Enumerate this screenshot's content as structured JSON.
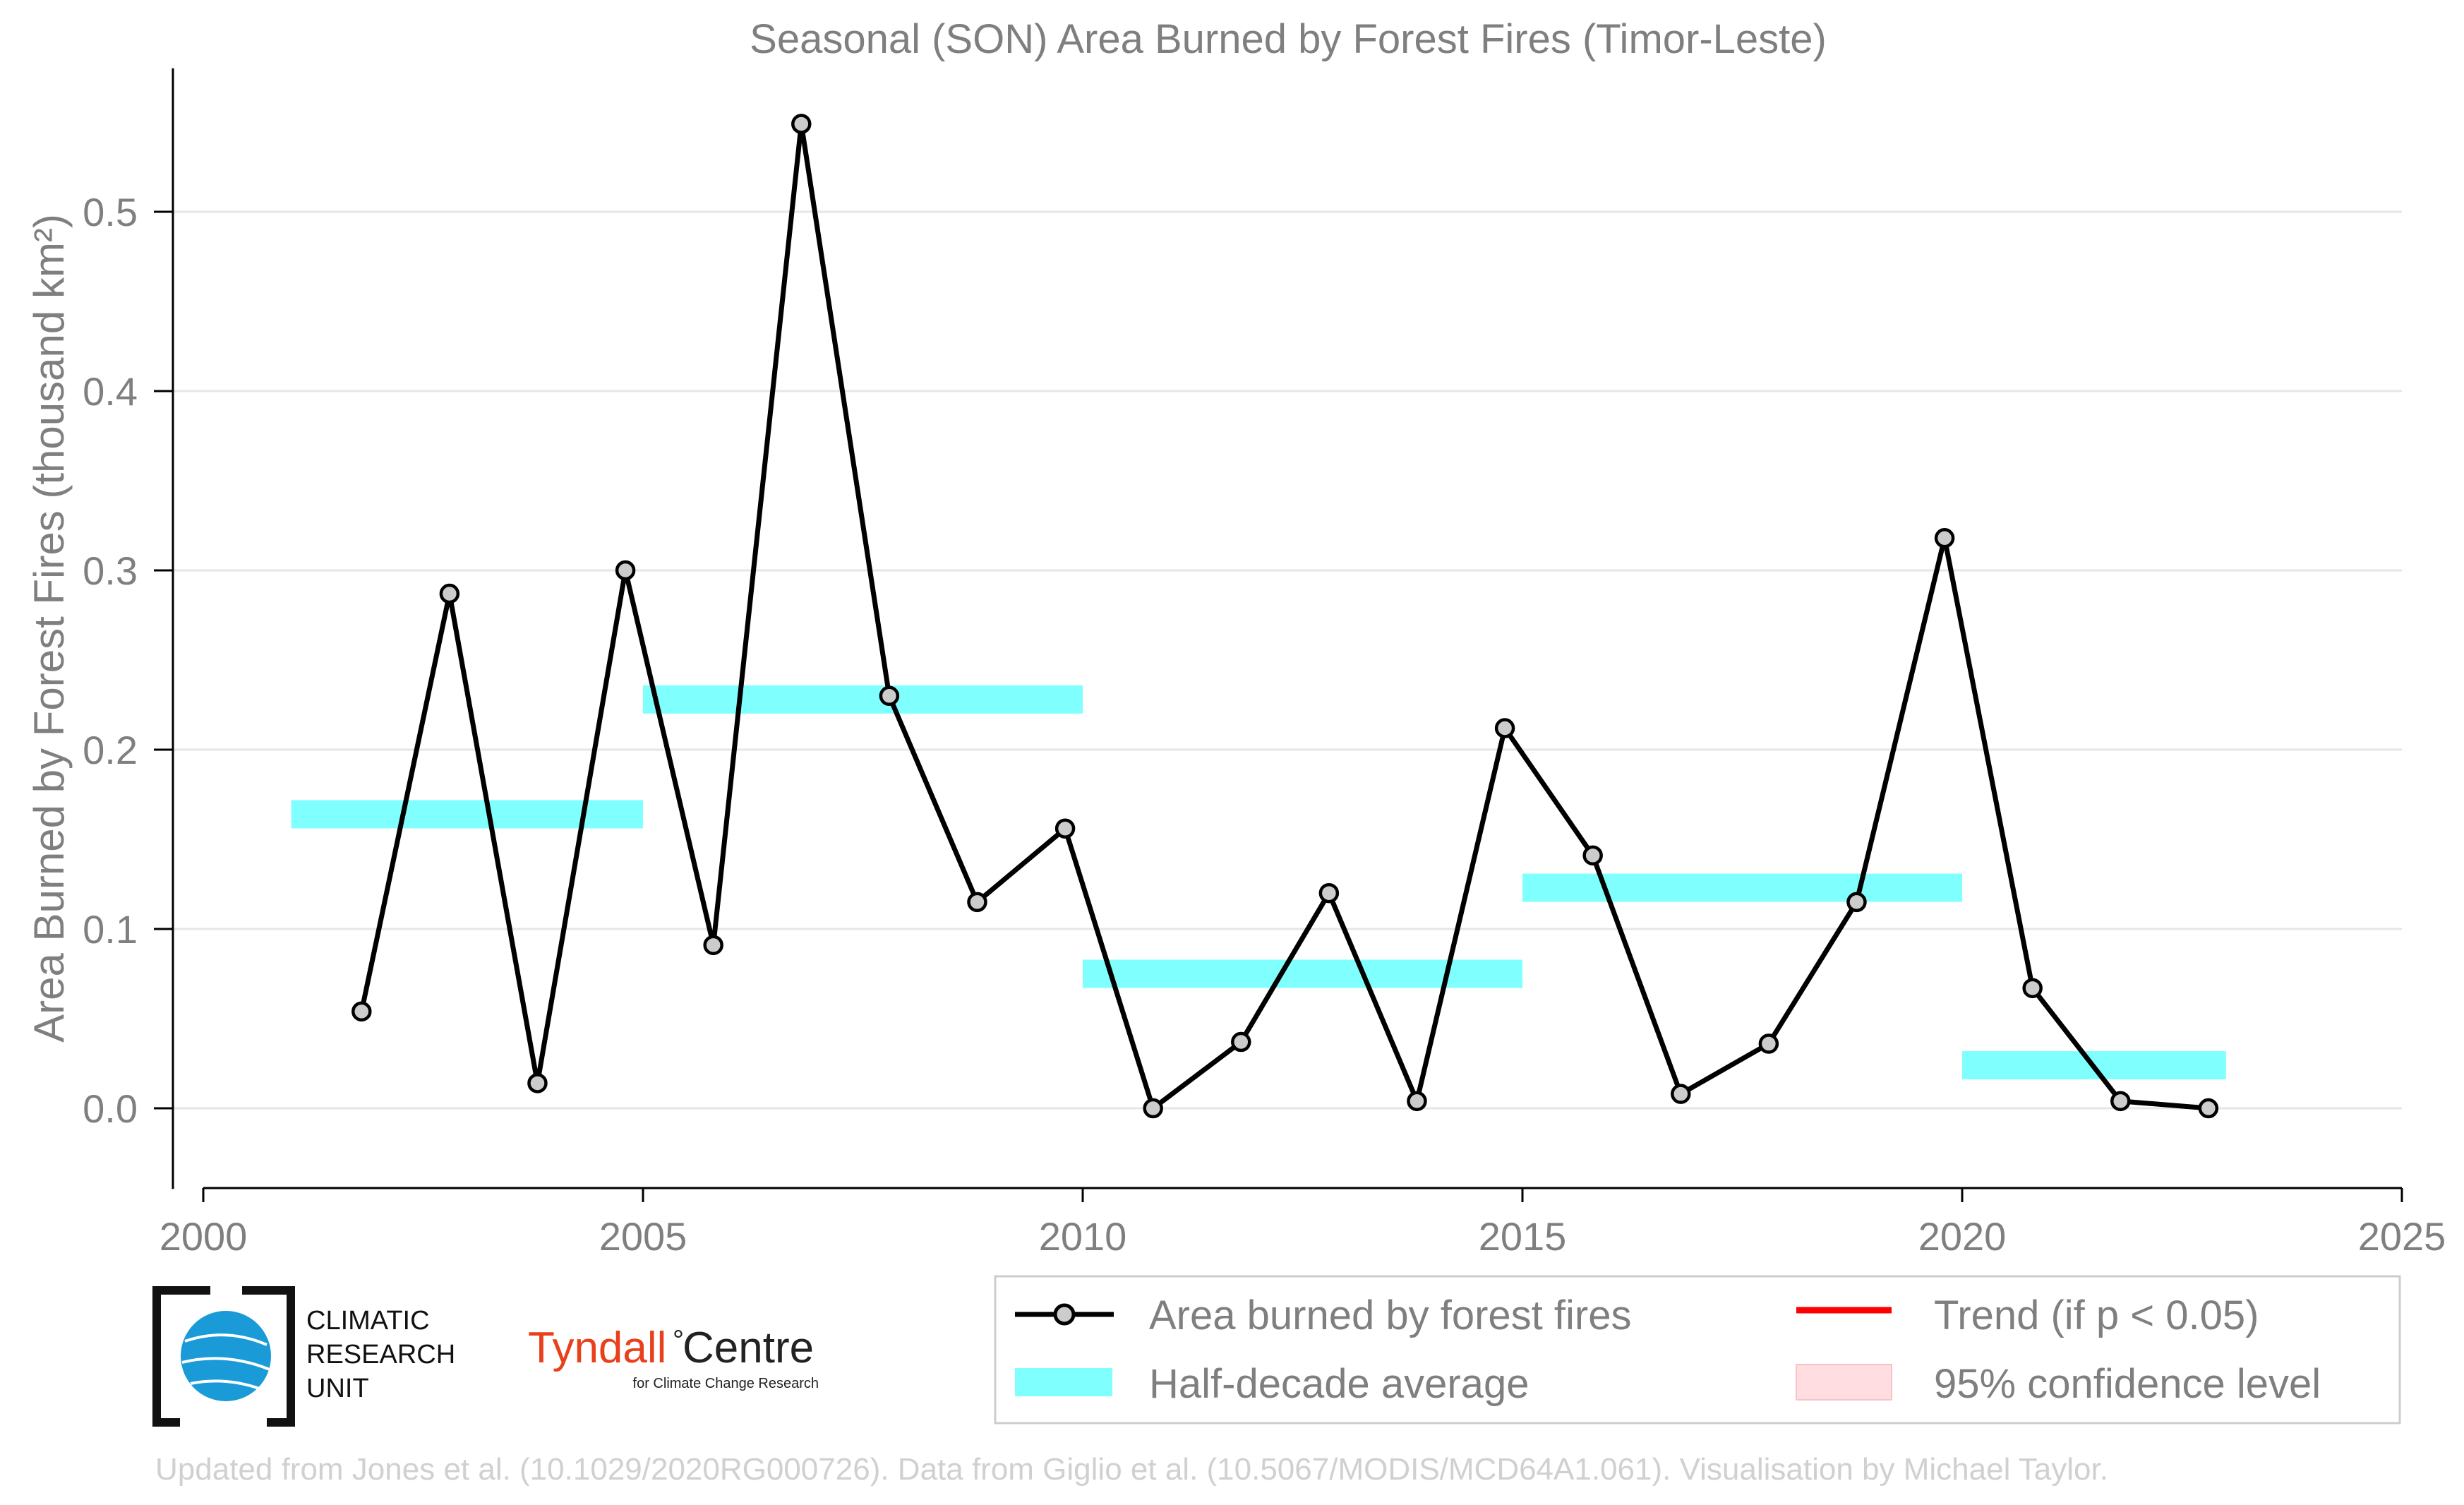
{
  "chart_data": {
    "type": "line",
    "title": "Seasonal (SON) Area Burned by Forest Fires (Timor-Leste)",
    "ylabel": "Area Burned by Forest Fires (thousand km²)",
    "xlabel": "",
    "xlim": [
      2000,
      2025
    ],
    "ylim": [
      -0.045,
      0.58
    ],
    "x_ticks": [
      2000,
      2005,
      2010,
      2015,
      2020,
      2025
    ],
    "y_ticks": [
      0.0,
      0.1,
      0.2,
      0.3,
      0.4,
      0.5
    ],
    "x_tick_labels": [
      "2000",
      "2005",
      "2010",
      "2015",
      "2020",
      "2025"
    ],
    "y_tick_labels": [
      "0.0",
      "0.1",
      "0.2",
      "0.3",
      "0.4",
      "0.5"
    ],
    "grid": "horizontal",
    "legend_position": "bottom-right",
    "series": [
      {
        "name": "Area burned by forest fires",
        "color": "#000000",
        "marker_fill": "#cccccc",
        "x": [
          2001.8,
          2002.8,
          2003.8,
          2004.8,
          2005.8,
          2006.8,
          2007.8,
          2008.8,
          2009.8,
          2010.8,
          2011.8,
          2012.8,
          2013.8,
          2014.8,
          2015.8,
          2016.8,
          2017.8,
          2018.8,
          2019.8,
          2020.8,
          2021.8,
          2022.8
        ],
        "values": [
          0.054,
          0.287,
          0.014,
          0.3,
          0.091,
          0.549,
          0.23,
          0.115,
          0.156,
          0.0,
          0.037,
          0.12,
          0.004,
          0.212,
          0.141,
          0.008,
          0.036,
          0.115,
          0.318,
          0.067,
          0.004,
          0.0
        ]
      }
    ],
    "half_decade_averages": {
      "name": "Half-decade average",
      "color": "#80ffff",
      "segments": [
        {
          "x_start": 2001.0,
          "x_end": 2005.0,
          "value": 0.164
        },
        {
          "x_start": 2005.0,
          "x_end": 2010.0,
          "value": 0.228
        },
        {
          "x_start": 2010.0,
          "x_end": 2015.0,
          "value": 0.075
        },
        {
          "x_start": 2015.0,
          "x_end": 2020.0,
          "value": 0.123
        },
        {
          "x_start": 2020.0,
          "x_end": 2023.0,
          "value": 0.024
        }
      ]
    },
    "legend": [
      {
        "label": "Area burned by forest fires",
        "kind": "line-marker",
        "color": "#000000"
      },
      {
        "label": "Trend (if p < 0.05)",
        "kind": "line",
        "color": "#ff0000"
      },
      {
        "label": "Half-decade average",
        "kind": "band",
        "color": "#80ffff"
      },
      {
        "label": "95% confidence level",
        "kind": "patch",
        "color": "#ffdde0"
      }
    ]
  },
  "logos": {
    "cru_lines": [
      "CLIMATIC",
      "RESEARCH",
      "UNIT"
    ],
    "tyndall_name": "Tyndall",
    "tyndall_centre": "Centre",
    "tyndall_degree": "°",
    "tyndall_sub": "for Climate Change Research"
  },
  "credit": "Updated from Jones et al. (10.1029/2020RG000726). Data from Giglio et al. (10.5067/MODIS/MCD64A1.061). Visualisation by Michael Taylor.",
  "colors": {
    "text": "#7f7f7f",
    "grid": "#e6e6e6",
    "series": "#000000",
    "average": "#80ffff",
    "trend": "#ff0000",
    "confidence": "#ffdde0",
    "credit": "#d0d0d0",
    "cru_blue": "#1a9ad6",
    "tyndall_red": "#e8401c"
  }
}
